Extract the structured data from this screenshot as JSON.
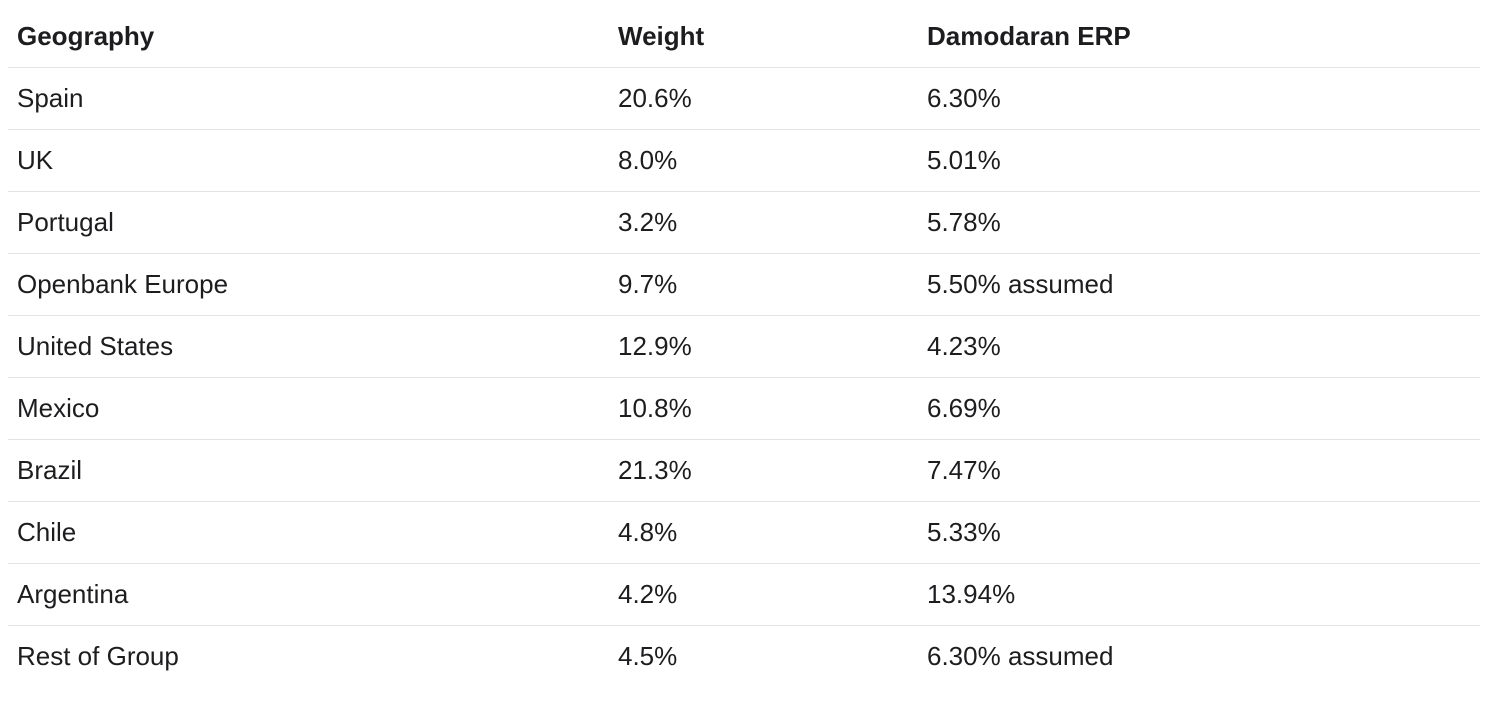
{
  "table": {
    "columns": [
      "Geography",
      "Weight",
      "Damodaran ERP"
    ],
    "rows": [
      [
        "Spain",
        "20.6%",
        "6.30%"
      ],
      [
        "UK",
        "8.0%",
        "5.01%"
      ],
      [
        "Portugal",
        "3.2%",
        "5.78%"
      ],
      [
        "Openbank Europe",
        "9.7%",
        "5.50% assumed"
      ],
      [
        "United States",
        "12.9%",
        "4.23%"
      ],
      [
        "Mexico",
        "10.8%",
        "6.69%"
      ],
      [
        "Brazil",
        "21.3%",
        "7.47%"
      ],
      [
        "Chile",
        "4.8%",
        "5.33%"
      ],
      [
        "Argentina",
        "4.2%",
        "13.94%"
      ],
      [
        "Rest of Group",
        "4.5%",
        "6.30% assumed"
      ]
    ]
  }
}
